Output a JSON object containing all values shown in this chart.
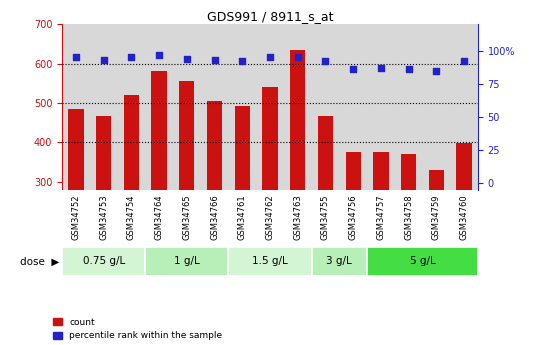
{
  "title": "GDS991 / 8911_s_at",
  "samples": [
    "GSM34752",
    "GSM34753",
    "GSM34754",
    "GSM34764",
    "GSM34765",
    "GSM34766",
    "GSM34761",
    "GSM34762",
    "GSM34763",
    "GSM34755",
    "GSM34756",
    "GSM34757",
    "GSM34758",
    "GSM34759",
    "GSM34760"
  ],
  "counts": [
    485,
    468,
    520,
    582,
    555,
    505,
    493,
    540,
    635,
    468,
    375,
    377,
    370,
    330,
    398
  ],
  "percentile_ranks": [
    95,
    93,
    95,
    97,
    94,
    93,
    92,
    95,
    95,
    92,
    86,
    87,
    86,
    85,
    92
  ],
  "dose_groups": [
    {
      "label": "0.75 g/L",
      "start": 0,
      "end": 3,
      "color": "#d4f5d4"
    },
    {
      "label": "1 g/L",
      "start": 3,
      "end": 6,
      "color": "#b8eeb8"
    },
    {
      "label": "1.5 g/L",
      "start": 6,
      "end": 9,
      "color": "#d4f5d4"
    },
    {
      "label": "3 g/L",
      "start": 9,
      "end": 11,
      "color": "#b8eeb8"
    },
    {
      "label": "5 g/L",
      "start": 11,
      "end": 15,
      "color": "#44dd44"
    }
  ],
  "ylim_left": [
    280,
    700
  ],
  "ylim_right": [
    -5,
    120
  ],
  "yticks_left": [
    300,
    400,
    500,
    600,
    700
  ],
  "yticks_right": [
    0,
    25,
    50,
    75,
    100
  ],
  "bar_color": "#cc1111",
  "dot_color": "#2222cc",
  "bar_width": 0.55,
  "bg_color": "#ffffff",
  "xticklabel_bg": "#cccccc",
  "dose_label": "dose"
}
